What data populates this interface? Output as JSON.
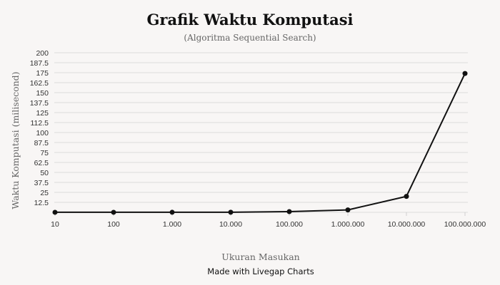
{
  "chart_data": {
    "type": "line",
    "title": "Grafik Waktu Komputasi",
    "subtitle": "(Algoritma Sequential Search)",
    "xlabel": "Ukuran Masukan",
    "ylabel": "Waktu Komputasi (milisecond)",
    "categories": [
      "10",
      "100",
      "1.000",
      "10.000",
      "100.000",
      "1.000.000",
      "10.000.000",
      "100.000.000"
    ],
    "series": [
      {
        "values": [
          0.05,
          0.05,
          0.06,
          0.1,
          0.9,
          3.0,
          20.0,
          174.0
        ]
      }
    ],
    "ylim": [
      0,
      200
    ],
    "yticks": [
      "12.5",
      "25",
      "37.5",
      "50",
      "62.5",
      "75",
      "87.5",
      "100",
      "112.5",
      "125",
      "137.5",
      "150",
      "162.5",
      "175",
      "187.5",
      "200"
    ],
    "grid": true,
    "legend": "none",
    "line_color": "#111111"
  },
  "footer": {
    "credit": "Made with Livegap Charts"
  }
}
